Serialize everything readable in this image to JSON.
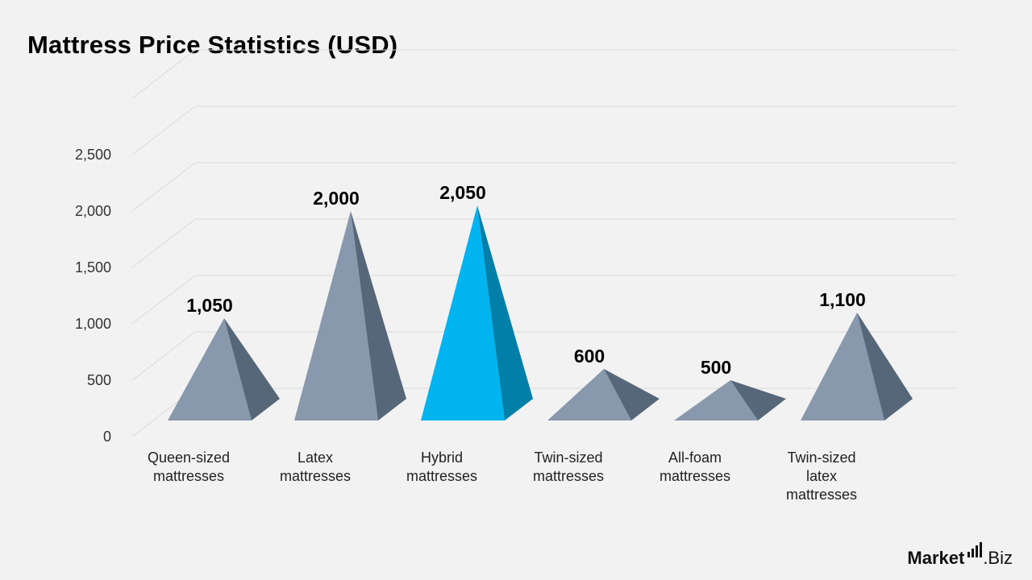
{
  "title": "Mattress Price Statistics (USD)",
  "chart_data": {
    "type": "bar",
    "style": "3d-pyramid",
    "title": "Mattress Price Statistics (USD)",
    "categories": [
      [
        "Queen-sized",
        "mattresses"
      ],
      [
        "Latex",
        "mattresses"
      ],
      [
        "Hybrid",
        "mattresses"
      ],
      [
        "Twin-sized",
        "mattresses"
      ],
      [
        "All-foam",
        "mattresses"
      ],
      [
        "Twin-sized",
        "latex",
        "mattresses"
      ]
    ],
    "values": [
      1050,
      2000,
      2050,
      600,
      500,
      1100
    ],
    "value_labels": [
      "1,050",
      "2,000",
      "2,050",
      "600",
      "500",
      "1,100"
    ],
    "highlight_index": 2,
    "yticks": [
      0,
      500,
      1000,
      1500,
      2000,
      2500
    ],
    "ytick_labels": [
      "0",
      "500",
      "1,000",
      "1,500",
      "2,000",
      "2,500"
    ],
    "ylim": [
      0,
      3000
    ],
    "grid": true,
    "xlabel": "",
    "ylabel": "",
    "colors": {
      "front": "#8898ad",
      "side": "#56677a",
      "highlight_front": "#00b4f0",
      "highlight_side": "#007fa8",
      "grid": "#d9d9d9"
    }
  },
  "brand": {
    "name": "Market",
    "suffix": ".Biz"
  }
}
